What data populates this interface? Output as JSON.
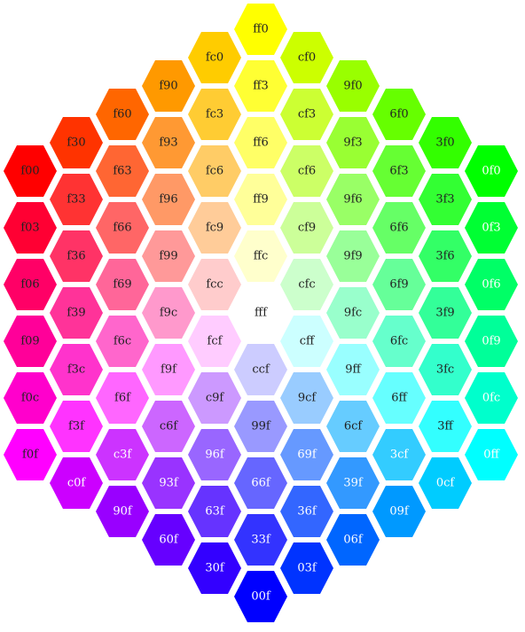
{
  "columns": [
    [
      "f00",
      "f03",
      "f06",
      "f09",
      "f0c",
      "f0f"
    ],
    [
      "f30",
      "f33",
      "f36",
      "f39",
      "f3c",
      "f3f",
      "c0f"
    ],
    [
      "f60",
      "f63",
      "f66",
      "f69",
      "f6c",
      "f6f",
      "c3f",
      "90f"
    ],
    [
      "f90",
      "f93",
      "f96",
      "f99",
      "f9c",
      "f9f",
      "c6f",
      "93f",
      "60f"
    ],
    [
      "fc0",
      "fc3",
      "fc6",
      "fc9",
      "fcc",
      "fcf",
      "c9f",
      "96f",
      "63f",
      "30f"
    ],
    [
      "ff0",
      "ff3",
      "ff6",
      "ff9",
      "ffc",
      "fff",
      "ccf",
      "99f",
      "66f",
      "33f",
      "00f"
    ],
    [
      "cf0",
      "cf3",
      "cf6",
      "cf9",
      "cfc",
      "cff",
      "9cf",
      "69f",
      "36f",
      "03f"
    ],
    [
      "9f0",
      "9f3",
      "9f6",
      "9f9",
      "9fc",
      "9ff",
      "6cf",
      "39f",
      "06f"
    ],
    [
      "6f0",
      "6f3",
      "6f6",
      "6f9",
      "6fc",
      "6ff",
      "3cf",
      "09f"
    ],
    [
      "3f0",
      "3f3",
      "3f6",
      "3f9",
      "3fc",
      "3ff",
      "0cf"
    ],
    [
      "0f0",
      "0f3",
      "0f6",
      "0f9",
      "0fc",
      "0ff"
    ]
  ]
}
